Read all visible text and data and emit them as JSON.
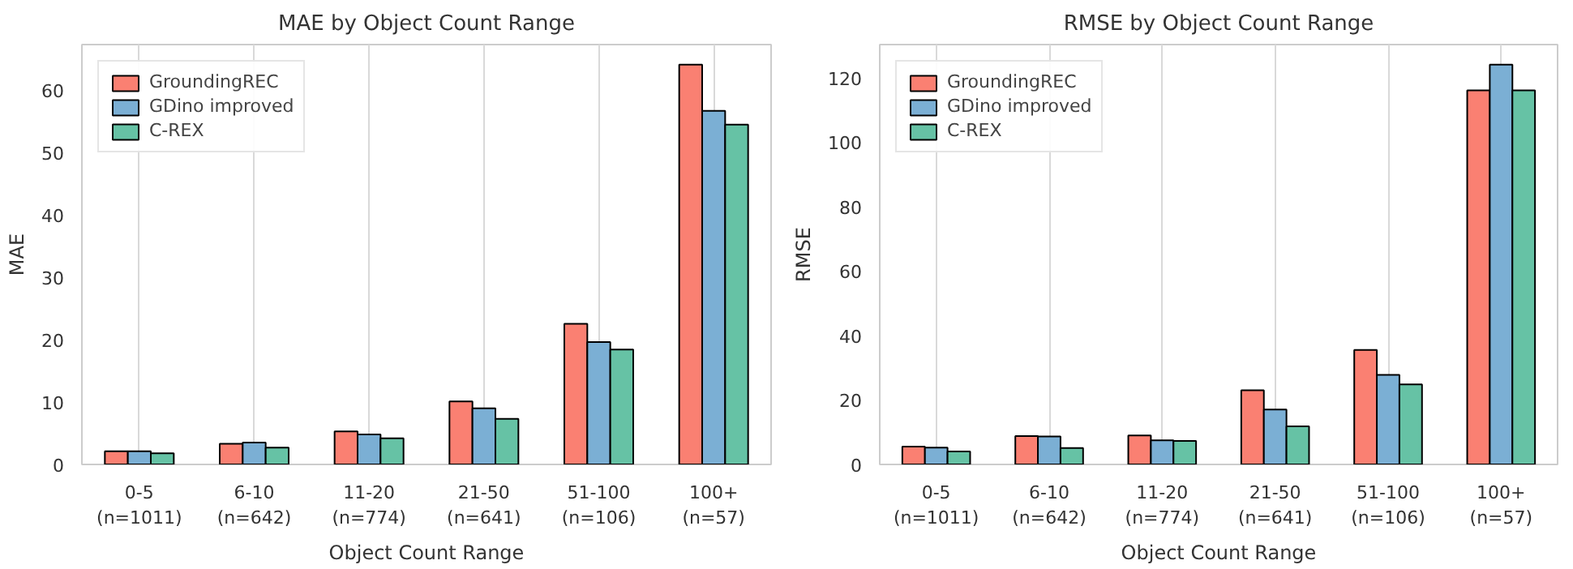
{
  "chart_data": [
    {
      "type": "bar",
      "title": "MAE by Object Count Range",
      "xlabel": "Object Count Range",
      "ylabel": "MAE",
      "categories": [
        "0-5\n(n=1011)",
        "6-10\n(n=642)",
        "11-20\n(n=774)",
        "21-50\n(n=641)",
        "51-100\n(n=106)",
        "100+\n(n=57)"
      ],
      "series": [
        {
          "name": "GroundingREC",
          "color": "#fa8072",
          "values": [
            2.1,
            3.3,
            5.3,
            10.1,
            22.5,
            64.0
          ]
        },
        {
          "name": "GDino improved",
          "color": "#7bafd4",
          "values": [
            2.1,
            3.5,
            4.8,
            9.0,
            19.6,
            56.6
          ]
        },
        {
          "name": "C-REX",
          "color": "#66c2a5",
          "values": [
            1.8,
            2.7,
            4.2,
            7.3,
            18.4,
            54.4
          ]
        }
      ],
      "ylim": [
        0,
        67.2
      ],
      "yticks": [
        0,
        10,
        20,
        30,
        40,
        50,
        60
      ],
      "grid": "x",
      "legend": "top left"
    },
    {
      "type": "bar",
      "title": "RMSE by Object Count Range",
      "xlabel": "Object Count Range",
      "ylabel": "RMSE",
      "categories": [
        "0-5\n(n=1011)",
        "6-10\n(n=642)",
        "11-20\n(n=774)",
        "21-50\n(n=641)",
        "51-100\n(n=106)",
        "100+\n(n=57)"
      ],
      "series": [
        {
          "name": "GroundingREC",
          "color": "#fa8072",
          "values": [
            5.5,
            8.8,
            9.0,
            23.0,
            35.5,
            116.0
          ]
        },
        {
          "name": "GDino improved",
          "color": "#7bafd4",
          "values": [
            5.2,
            8.7,
            7.5,
            17.0,
            27.8,
            124.0
          ]
        },
        {
          "name": "C-REX",
          "color": "#66c2a5",
          "values": [
            4.0,
            5.1,
            7.3,
            11.8,
            24.8,
            116.0
          ]
        }
      ],
      "ylim": [
        0,
        130.2
      ],
      "yticks": [
        0,
        20,
        40,
        60,
        80,
        100,
        120
      ],
      "grid": "x",
      "legend": "top left"
    }
  ]
}
